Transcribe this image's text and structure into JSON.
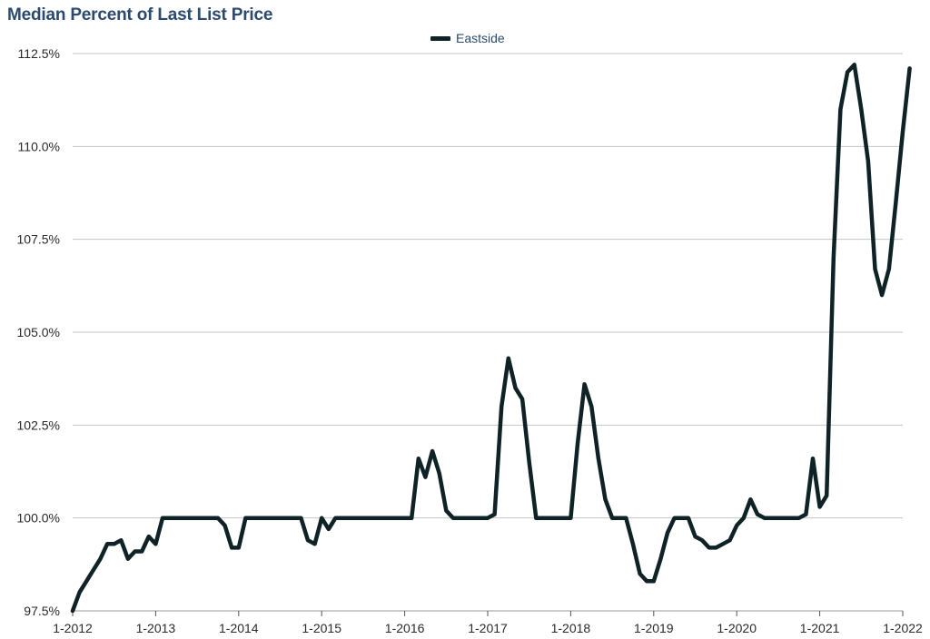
{
  "chart_data": {
    "type": "line",
    "title": "Median Percent of Last List Price",
    "xlabel": "",
    "ylabel": "",
    "legend_position": "top-center",
    "grid": "horizontal",
    "ylim": [
      97.5,
      112.5
    ],
    "y_ticks": [
      "97.5%",
      "100.0%",
      "102.5%",
      "105.0%",
      "107.5%",
      "110.0%",
      "112.5%"
    ],
    "x_ticks": [
      "1-2012",
      "1-2013",
      "1-2014",
      "1-2015",
      "1-2016",
      "1-2017",
      "1-2018",
      "1-2019",
      "1-2020",
      "1-2021",
      "1-2022"
    ],
    "series": [
      {
        "name": "Eastside",
        "color": "#0f2226",
        "points": [
          [
            "1-2012",
            97.5
          ],
          [
            "2-2012",
            98.0
          ],
          [
            "3-2012",
            98.3
          ],
          [
            "4-2012",
            98.6
          ],
          [
            "5-2012",
            98.9
          ],
          [
            "6-2012",
            99.3
          ],
          [
            "7-2012",
            99.3
          ],
          [
            "8-2012",
            99.4
          ],
          [
            "9-2012",
            98.9
          ],
          [
            "10-2012",
            99.1
          ],
          [
            "11-2012",
            99.1
          ],
          [
            "12-2012",
            99.5
          ],
          [
            "1-2013",
            99.3
          ],
          [
            "2-2013",
            100.0
          ],
          [
            "3-2013",
            100.0
          ],
          [
            "4-2013",
            100.0
          ],
          [
            "5-2013",
            100.0
          ],
          [
            "6-2013",
            100.0
          ],
          [
            "7-2013",
            100.0
          ],
          [
            "8-2013",
            100.0
          ],
          [
            "9-2013",
            100.0
          ],
          [
            "10-2013",
            100.0
          ],
          [
            "11-2013",
            99.8
          ],
          [
            "12-2013",
            99.2
          ],
          [
            "1-2014",
            99.2
          ],
          [
            "2-2014",
            100.0
          ],
          [
            "3-2014",
            100.0
          ],
          [
            "4-2014",
            100.0
          ],
          [
            "5-2014",
            100.0
          ],
          [
            "6-2014",
            100.0
          ],
          [
            "7-2014",
            100.0
          ],
          [
            "8-2014",
            100.0
          ],
          [
            "9-2014",
            100.0
          ],
          [
            "10-2014",
            100.0
          ],
          [
            "11-2014",
            99.4
          ],
          [
            "12-2014",
            99.3
          ],
          [
            "1-2015",
            100.0
          ],
          [
            "2-2015",
            99.7
          ],
          [
            "3-2015",
            100.0
          ],
          [
            "4-2015",
            100.0
          ],
          [
            "5-2015",
            100.0
          ],
          [
            "6-2015",
            100.0
          ],
          [
            "7-2015",
            100.0
          ],
          [
            "8-2015",
            100.0
          ],
          [
            "9-2015",
            100.0
          ],
          [
            "10-2015",
            100.0
          ],
          [
            "11-2015",
            100.0
          ],
          [
            "12-2015",
            100.0
          ],
          [
            "1-2016",
            100.0
          ],
          [
            "2-2016",
            100.0
          ],
          [
            "3-2016",
            101.6
          ],
          [
            "4-2016",
            101.1
          ],
          [
            "5-2016",
            101.8
          ],
          [
            "6-2016",
            101.2
          ],
          [
            "7-2016",
            100.2
          ],
          [
            "8-2016",
            100.0
          ],
          [
            "9-2016",
            100.0
          ],
          [
            "10-2016",
            100.0
          ],
          [
            "11-2016",
            100.0
          ],
          [
            "12-2016",
            100.0
          ],
          [
            "1-2017",
            100.0
          ],
          [
            "2-2017",
            100.1
          ],
          [
            "3-2017",
            103.0
          ],
          [
            "4-2017",
            104.3
          ],
          [
            "5-2017",
            103.5
          ],
          [
            "6-2017",
            103.2
          ],
          [
            "7-2017",
            101.5
          ],
          [
            "8-2017",
            100.0
          ],
          [
            "9-2017",
            100.0
          ],
          [
            "10-2017",
            100.0
          ],
          [
            "11-2017",
            100.0
          ],
          [
            "12-2017",
            100.0
          ],
          [
            "1-2018",
            100.0
          ],
          [
            "2-2018",
            102.0
          ],
          [
            "3-2018",
            103.6
          ],
          [
            "4-2018",
            103.0
          ],
          [
            "5-2018",
            101.6
          ],
          [
            "6-2018",
            100.5
          ],
          [
            "7-2018",
            100.0
          ],
          [
            "8-2018",
            100.0
          ],
          [
            "9-2018",
            100.0
          ],
          [
            "10-2018",
            99.3
          ],
          [
            "11-2018",
            98.5
          ],
          [
            "12-2018",
            98.3
          ],
          [
            "1-2019",
            98.3
          ],
          [
            "2-2019",
            98.9
          ],
          [
            "3-2019",
            99.6
          ],
          [
            "4-2019",
            100.0
          ],
          [
            "5-2019",
            100.0
          ],
          [
            "6-2019",
            100.0
          ],
          [
            "7-2019",
            99.5
          ],
          [
            "8-2019",
            99.4
          ],
          [
            "9-2019",
            99.2
          ],
          [
            "10-2019",
            99.2
          ],
          [
            "11-2019",
            99.3
          ],
          [
            "12-2019",
            99.4
          ],
          [
            "1-2020",
            99.8
          ],
          [
            "2-2020",
            100.0
          ],
          [
            "3-2020",
            100.5
          ],
          [
            "4-2020",
            100.1
          ],
          [
            "5-2020",
            100.0
          ],
          [
            "6-2020",
            100.0
          ],
          [
            "7-2020",
            100.0
          ],
          [
            "8-2020",
            100.0
          ],
          [
            "9-2020",
            100.0
          ],
          [
            "10-2020",
            100.0
          ],
          [
            "11-2020",
            100.1
          ],
          [
            "12-2020",
            101.6
          ],
          [
            "1-2021",
            100.3
          ],
          [
            "2-2021",
            100.6
          ],
          [
            "3-2021",
            107.0
          ],
          [
            "4-2021",
            111.0
          ],
          [
            "5-2021",
            112.0
          ],
          [
            "6-2021",
            112.2
          ],
          [
            "7-2021",
            111.0
          ],
          [
            "8-2021",
            109.6
          ],
          [
            "9-2021",
            106.7
          ],
          [
            "10-2021",
            106.0
          ],
          [
            "11-2021",
            106.7
          ],
          [
            "12-2021",
            108.5
          ],
          [
            "1-2022",
            110.4
          ],
          [
            "2-2022",
            112.1
          ]
        ]
      }
    ]
  }
}
